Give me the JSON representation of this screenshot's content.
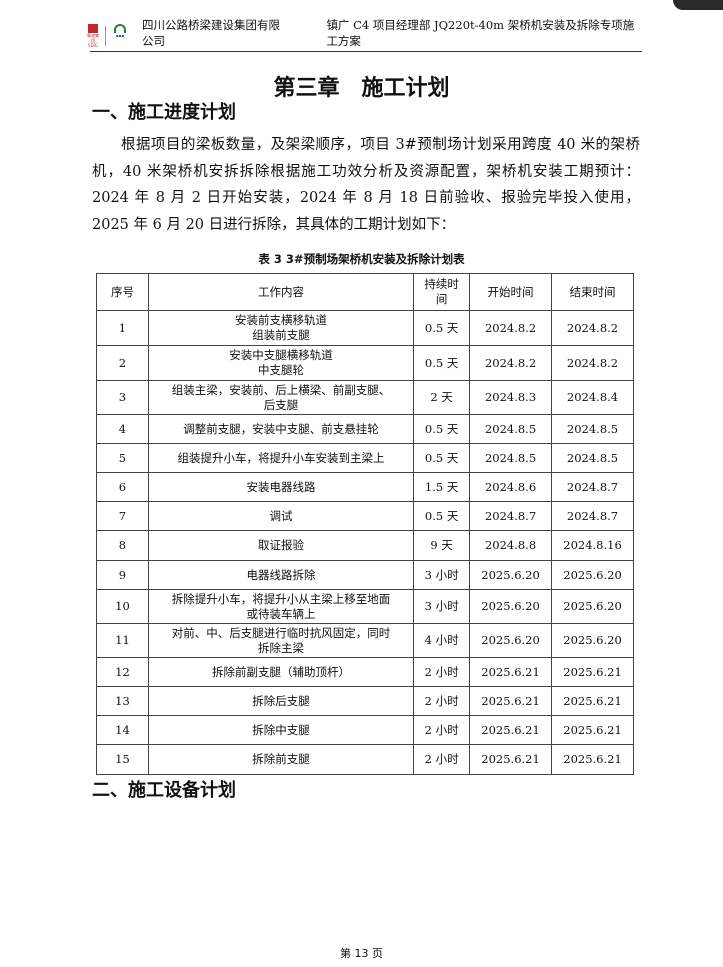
{
  "header": {
    "logo1_text": "蜀道集团 SDIG",
    "company": "四川公路桥梁建设集团有限公司",
    "project": "镇广 C4 项目经理部 JQ220t-40m 架桥机安装及拆除专项施工方案"
  },
  "chapter_title": "第三章　施工计划",
  "section1": "一、施工进度计划",
  "paragraph": "根据项目的梁板数量，及架梁顺序，项目 3#预制场计划采用跨度 40 米的架桥机，40 米架桥机安拆拆除根据施工功效分析及资源配置，架桥机安装工期预计：2024 年 8 月 2 日开始安装，2024 年 8 月 18 日前验收、报验完毕投入使用，2025 年 6 月 20 日进行拆除，其具体的工期计划如下：",
  "table": {
    "caption": "表 3  3#预制场架桥机安装及拆除计划表",
    "headers": [
      "序号",
      "工作内容",
      "持续时间",
      "开始时间",
      "结束时间"
    ],
    "rows": [
      [
        "1",
        "安装前支横移轨道\n组装前支腿",
        "0.5 天",
        "2024.8.2",
        "2024.8.2"
      ],
      [
        "2",
        "安装中支腿横移轨道\n中支腿轮",
        "0.5 天",
        "2024.8.2",
        "2024.8.2"
      ],
      [
        "3",
        "组装主梁，安装前、后上横梁、前副支腿、\n后支腿",
        "2 天",
        "2024.8.3",
        "2024.8.4"
      ],
      [
        "4",
        "调整前支腿，安装中支腿、前支悬挂轮",
        "0.5 天",
        "2024.8.5",
        "2024.8.5"
      ],
      [
        "5",
        "组装提升小车，将提升小车安装到主梁上",
        "0.5 天",
        "2024.8.5",
        "2024.8.5"
      ],
      [
        "6",
        "安装电器线路",
        "1.5 天",
        "2024.8.6",
        "2024.8.7"
      ],
      [
        "7",
        "调试",
        "0.5 天",
        "2024.8.7",
        "2024.8.7"
      ],
      [
        "8",
        "取证报验",
        "9 天",
        "2024.8.8",
        "2024.8.16"
      ],
      [
        "9",
        "电器线路拆除",
        "3 小时",
        "2025.6.20",
        "2025.6.20"
      ],
      [
        "10",
        "拆除提升小车，将提升小从主梁上移至地面\n或待装车辆上",
        "3 小时",
        "2025.6.20",
        "2025.6.20"
      ],
      [
        "11",
        "对前、中、后支腿进行临时抗风固定，同时\n拆除主梁",
        "4 小时",
        "2025.6.20",
        "2025.6.20"
      ],
      [
        "12",
        "拆除前副支腿（辅助顶杆）",
        "2 小时",
        "2025.6.21",
        "2025.6.21"
      ],
      [
        "13",
        "拆除后支腿",
        "2 小时",
        "2025.6.21",
        "2025.6.21"
      ],
      [
        "14",
        "拆除中支腿",
        "2 小时",
        "2025.6.21",
        "2025.6.21"
      ],
      [
        "15",
        "拆除前支腿",
        "2 小时",
        "2025.6.21",
        "2025.6.21"
      ]
    ]
  },
  "section2": "二、施工设备计划",
  "footer": "第 13 页"
}
